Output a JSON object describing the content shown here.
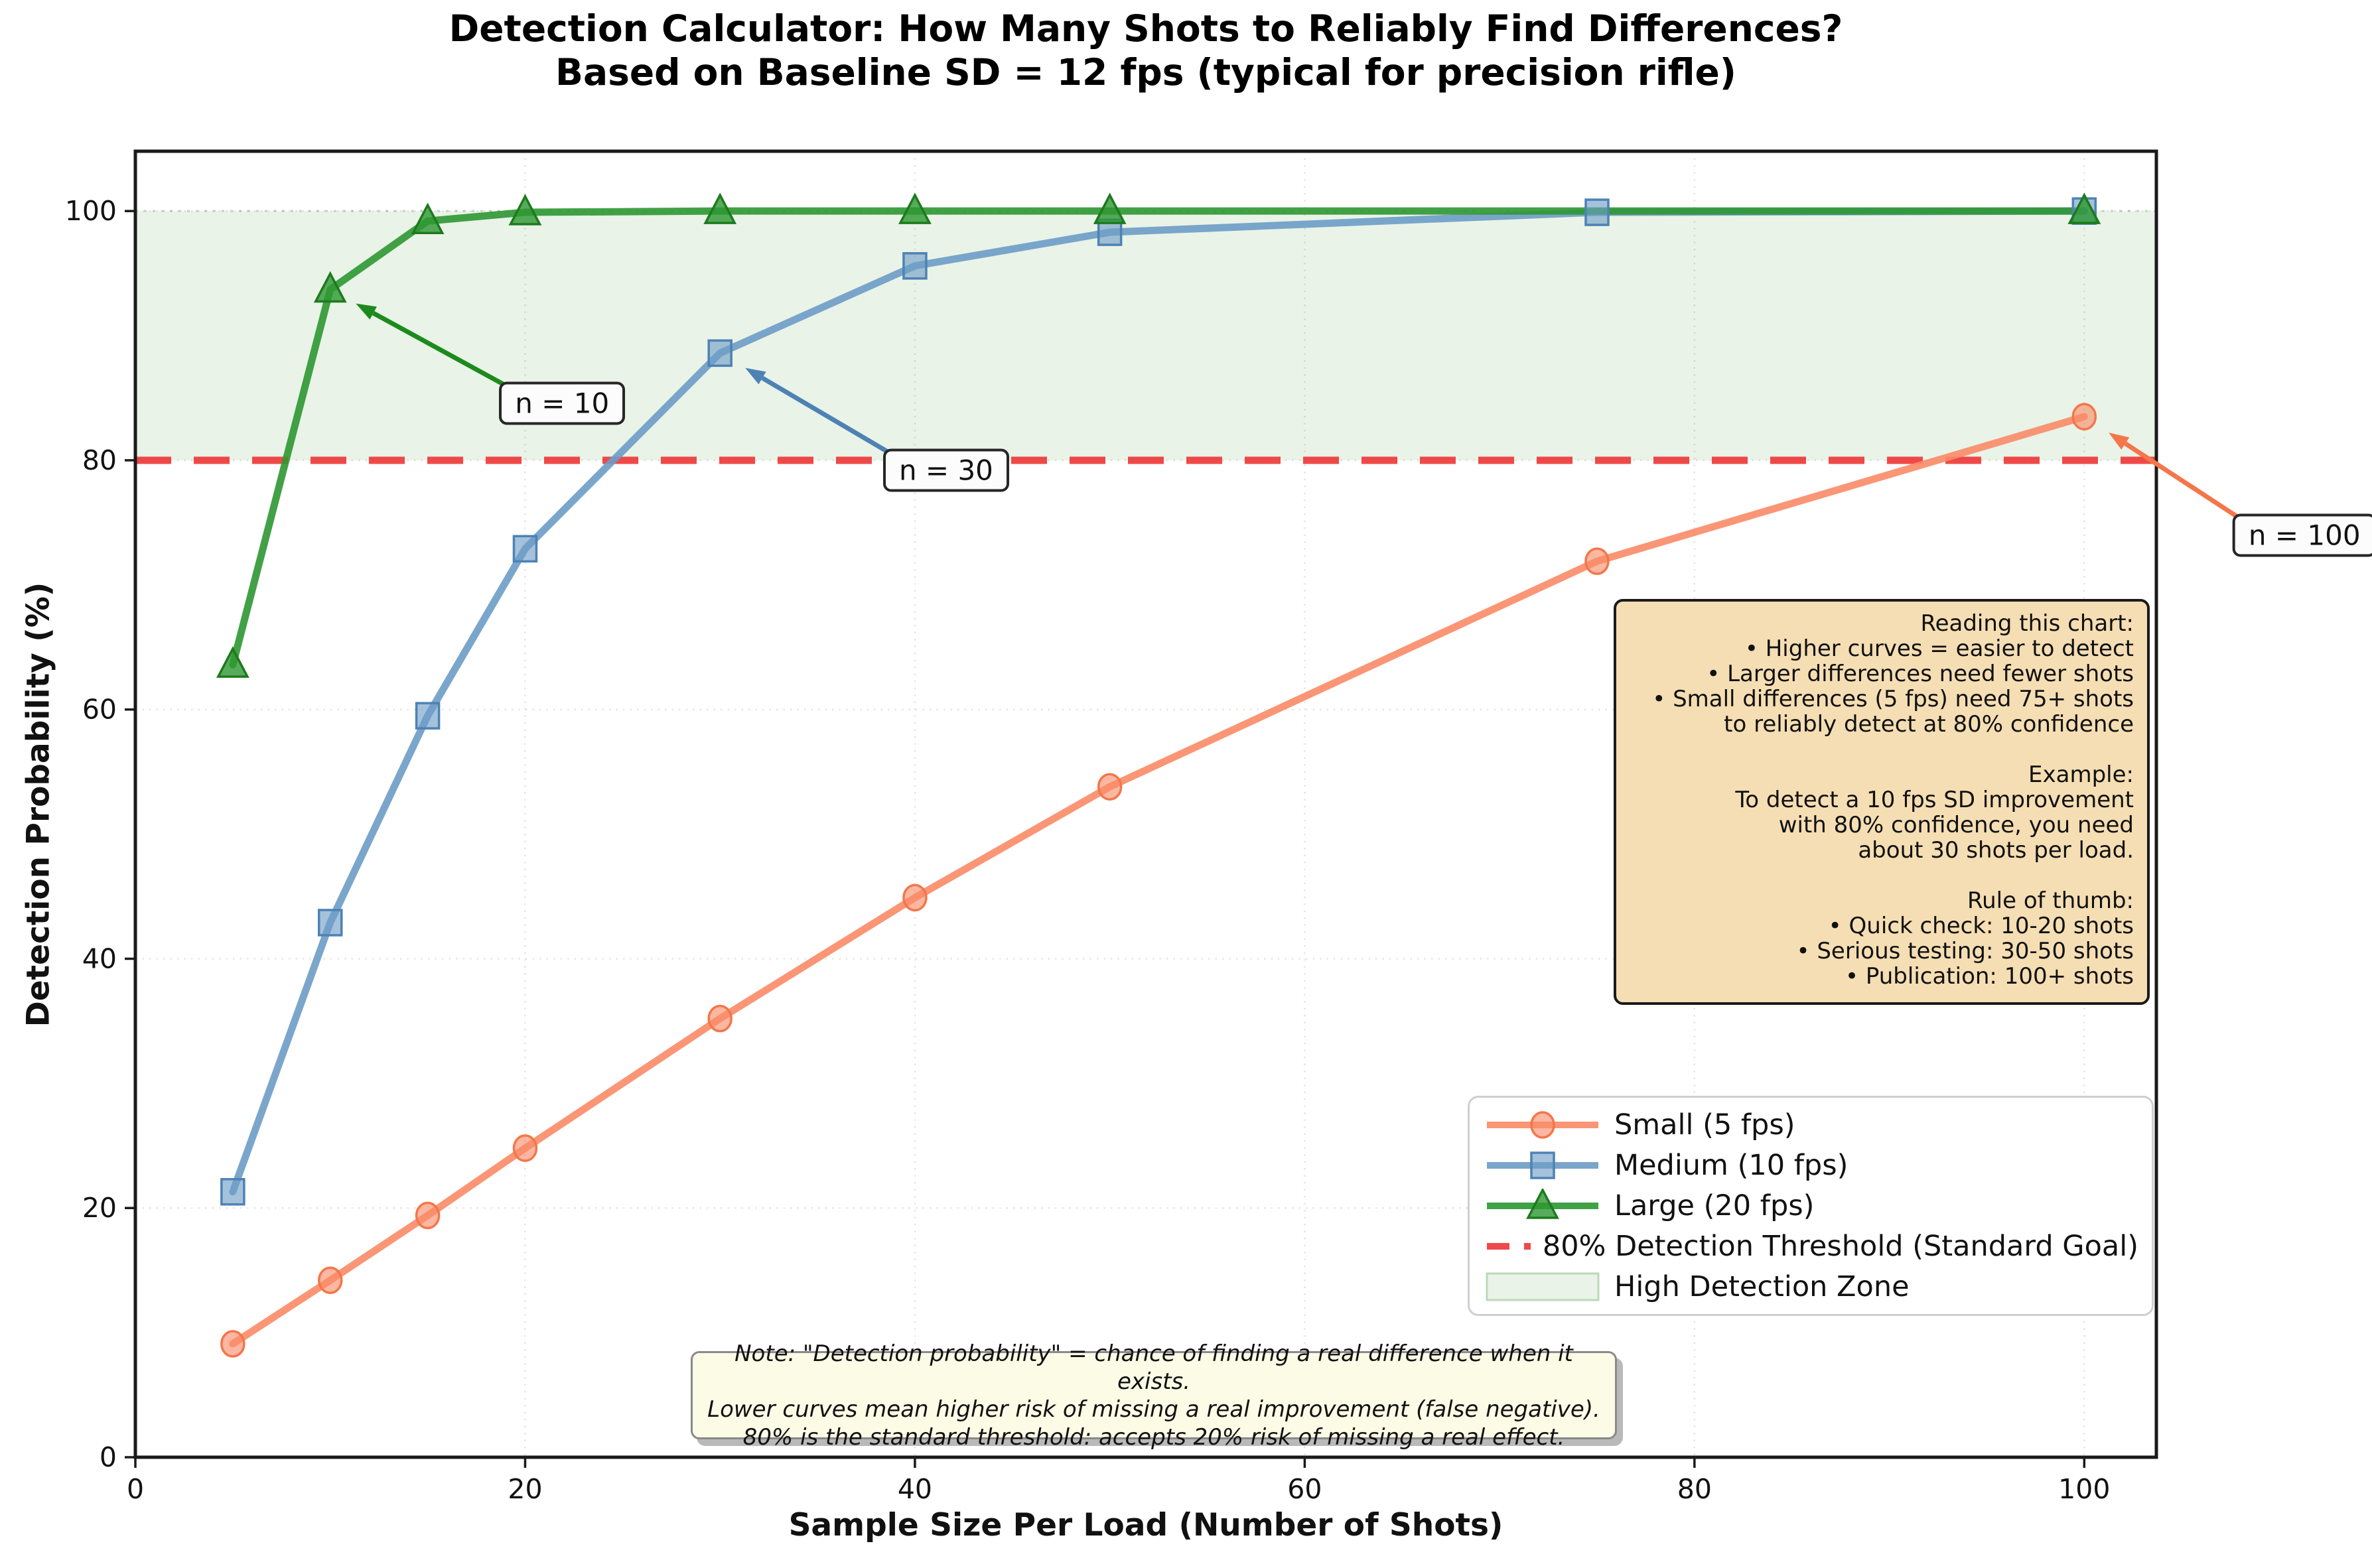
{
  "title": {
    "line1": "Detection Calculator: How Many Shots to Reliably Find Differences?",
    "line2": "Based on Baseline SD = 12 fps (typical for precision rifle)"
  },
  "chart_data": {
    "type": "line",
    "xlabel": "Sample Size Per Load (Number of Shots)",
    "ylabel": "Detection Probability (%)",
    "x_ticks": [
      0,
      20,
      40,
      60,
      80,
      100
    ],
    "y_ticks": [
      0,
      20,
      40,
      60,
      80,
      100
    ],
    "xlim": [
      0,
      103.7
    ],
    "ylim": [
      0,
      104.8
    ],
    "grid": true,
    "legend_position": "lower right",
    "series": [
      {
        "name": "Small (5 fps)",
        "marker": "circle",
        "color": "#f98b67",
        "edge": "#f4764a",
        "x": [
          5,
          10,
          15,
          20,
          30,
          40,
          50,
          75,
          100
        ],
        "values": [
          9.1,
          14.2,
          19.4,
          24.8,
          35.2,
          44.9,
          53.8,
          71.9,
          83.5
        ]
      },
      {
        "name": "Medium (10 fps)",
        "marker": "square",
        "color": "#6d9cc6",
        "edge": "#4e82b4",
        "x": [
          5,
          10,
          15,
          20,
          30,
          40,
          50,
          75,
          100
        ],
        "values": [
          21.3,
          42.9,
          59.5,
          72.9,
          88.6,
          95.6,
          98.3,
          99.9,
          100.0
        ]
      },
      {
        "name": "Large (20 fps)",
        "marker": "triangle",
        "color": "#2d9732",
        "edge": "#1d7a1d",
        "x": [
          5,
          10,
          15,
          20,
          30,
          40,
          50,
          100
        ],
        "values": [
          63.6,
          93.7,
          99.2,
          99.9,
          100.0,
          100.0,
          100.0,
          100.0
        ]
      }
    ],
    "threshold": {
      "value": 80,
      "label": "80% Detection Threshold (Standard Goal)",
      "color": "#ee3a3a"
    },
    "zone": {
      "from": 80,
      "to": 100,
      "label": "High Detection Zone",
      "fill": "#e9f3e7",
      "edge": "#bcd8ba"
    },
    "annotations": [
      {
        "text": "n = 10",
        "target_x": 10,
        "target_y": 93.7,
        "box_x": 21.9,
        "box_y": 84.6,
        "color": "#1d8a1d"
      },
      {
        "text": "n = 30",
        "target_x": 30,
        "target_y": 88.6,
        "box_x": 41.6,
        "box_y": 79.2,
        "color": "#4e82b4"
      },
      {
        "text": "n = 100",
        "target_x": 100,
        "target_y": 83.5,
        "box_x": 111.3,
        "box_y": 74.0,
        "color": "#f4764a"
      }
    ]
  },
  "info_box": {
    "lines": [
      "Reading this chart:",
      "• Higher curves = easier to detect",
      "• Larger differences need fewer shots",
      "• Small differences (5 fps) need 75+ shots",
      "to reliably detect at 80% confidence",
      "",
      "Example:",
      "To detect a 10 fps SD improvement",
      "with 80% confidence, you need",
      "about 30 shots per load.",
      "",
      "Rule of thumb:",
      "• Quick check: 10-20 shots",
      "• Serious testing: 30-50 shots",
      "• Publication: 100+ shots"
    ]
  },
  "note_box": {
    "lines": [
      "Note: \"Detection probability\" = chance of finding a real difference when it exists.",
      "Lower curves mean higher risk of missing a real improvement (false negative).",
      "80% is the standard threshold: accepts 20% risk of missing a real effect."
    ]
  }
}
